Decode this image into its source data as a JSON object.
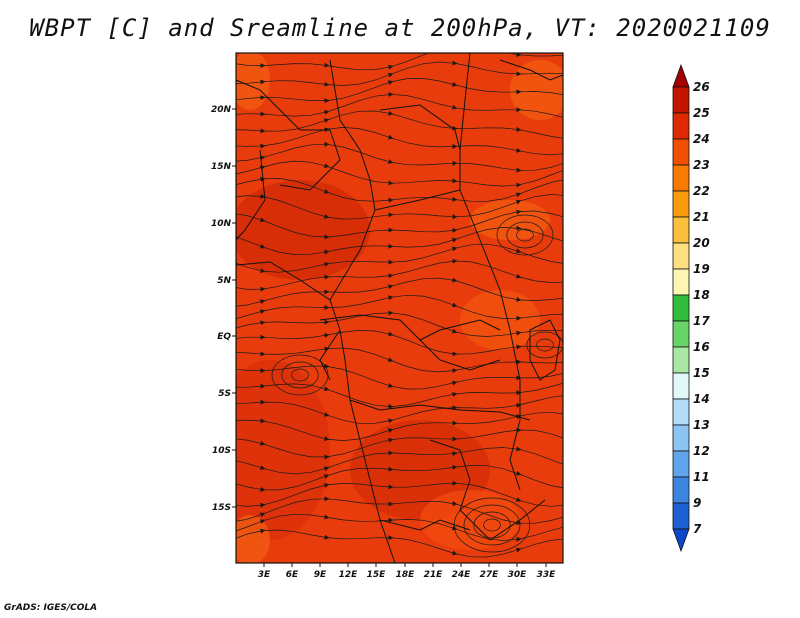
{
  "title": "WBPT [C] and Sreamline at 200hPa, VT: 2020021109",
  "footer": "GrADS: IGES/COLA",
  "map": {
    "lat_labels": [
      "20N",
      "15N",
      "10N",
      "5N",
      "EQ",
      "5S",
      "10S",
      "15S"
    ],
    "lon_labels": [
      "3E",
      "6E",
      "9E",
      "12E",
      "15E",
      "18E",
      "21E",
      "24E",
      "27E",
      "30E",
      "33E"
    ],
    "field_color": "#e83c0c",
    "streamline_color": "#1a1a1a"
  },
  "colorbar": {
    "labels": [
      "26",
      "25",
      "24",
      "23",
      "22",
      "21",
      "20",
      "19",
      "18",
      "17",
      "16",
      "15",
      "14",
      "13",
      "12",
      "11",
      "9",
      "7"
    ],
    "colors": [
      "#a40000",
      "#c41400",
      "#de2a00",
      "#f05000",
      "#fa7a00",
      "#fb9c10",
      "#fbbf3c",
      "#fde080",
      "#fdf5b4",
      "#2fbd3a",
      "#68d468",
      "#a8e8a4",
      "#e0f8f8",
      "#b4dcf8",
      "#8cc4f4",
      "#60a4ec",
      "#3c86e0",
      "#1d60d4",
      "#0c48c8"
    ],
    "top_arrow_color": "#a40000",
    "bottom_arrow_color": "#0c48c8"
  }
}
